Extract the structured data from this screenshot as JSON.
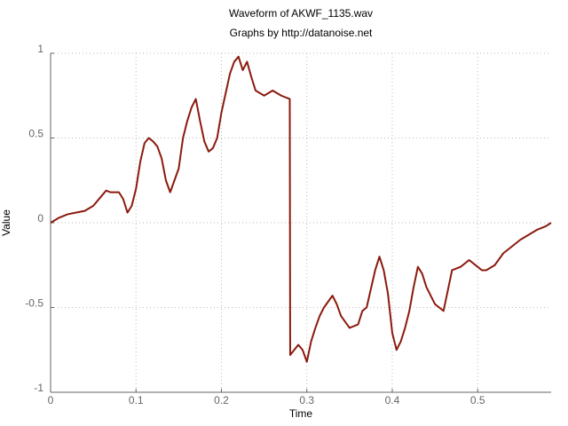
{
  "chart_data": {
    "type": "line",
    "title": "Waveform of AKWF_1135.wav",
    "subtitle": "Graphs by http://datanoise.net",
    "x_label": "Time",
    "y_label": "Value",
    "color": "#8b1a0e",
    "grid": true,
    "xlim": [
      0,
      0.586
    ],
    "ylim": [
      -1,
      1
    ],
    "xticks": [
      0,
      0.1,
      0.2,
      0.3,
      0.4,
      0.5
    ],
    "yticks": [
      -1,
      -0.5,
      0,
      0.5,
      1
    ],
    "x": [
      0,
      0.01,
      0.02,
      0.03,
      0.04,
      0.05,
      0.06,
      0.065,
      0.07,
      0.08,
      0.085,
      0.09,
      0.095,
      0.1,
      0.105,
      0.11,
      0.115,
      0.12,
      0.125,
      0.13,
      0.135,
      0.14,
      0.145,
      0.15,
      0.155,
      0.16,
      0.165,
      0.17,
      0.175,
      0.18,
      0.185,
      0.19,
      0.195,
      0.2,
      0.21,
      0.215,
      0.22,
      0.225,
      0.23,
      0.235,
      0.24,
      0.25,
      0.26,
      0.27,
      0.28,
      0.2805,
      0.29,
      0.295,
      0.3,
      0.305,
      0.31,
      0.315,
      0.32,
      0.33,
      0.335,
      0.34,
      0.35,
      0.36,
      0.365,
      0.37,
      0.38,
      0.385,
      0.39,
      0.395,
      0.4,
      0.405,
      0.41,
      0.415,
      0.42,
      0.425,
      0.43,
      0.435,
      0.44,
      0.45,
      0.455,
      0.46,
      0.465,
      0.47,
      0.48,
      0.49,
      0.5,
      0.505,
      0.51,
      0.52,
      0.53,
      0.54,
      0.55,
      0.56,
      0.57,
      0.58,
      0.586
    ],
    "values": [
      0,
      0.03,
      0.05,
      0.06,
      0.07,
      0.1,
      0.16,
      0.19,
      0.18,
      0.18,
      0.14,
      0.06,
      0.1,
      0.2,
      0.36,
      0.47,
      0.5,
      0.48,
      0.45,
      0.38,
      0.25,
      0.18,
      0.25,
      0.32,
      0.5,
      0.6,
      0.68,
      0.73,
      0.6,
      0.48,
      0.42,
      0.44,
      0.5,
      0.65,
      0.88,
      0.95,
      0.98,
      0.9,
      0.95,
      0.86,
      0.78,
      0.75,
      0.78,
      0.75,
      0.73,
      -0.78,
      -0.72,
      -0.75,
      -0.82,
      -0.7,
      -0.62,
      -0.55,
      -0.5,
      -0.43,
      -0.48,
      -0.55,
      -0.62,
      -0.6,
      -0.52,
      -0.5,
      -0.28,
      -0.2,
      -0.28,
      -0.42,
      -0.65,
      -0.75,
      -0.7,
      -0.62,
      -0.52,
      -0.38,
      -0.26,
      -0.3,
      -0.38,
      -0.48,
      -0.5,
      -0.52,
      -0.4,
      -0.28,
      -0.26,
      -0.22,
      -0.26,
      -0.28,
      -0.28,
      -0.25,
      -0.18,
      -0.14,
      -0.1,
      -0.07,
      -0.04,
      -0.02,
      0
    ]
  }
}
